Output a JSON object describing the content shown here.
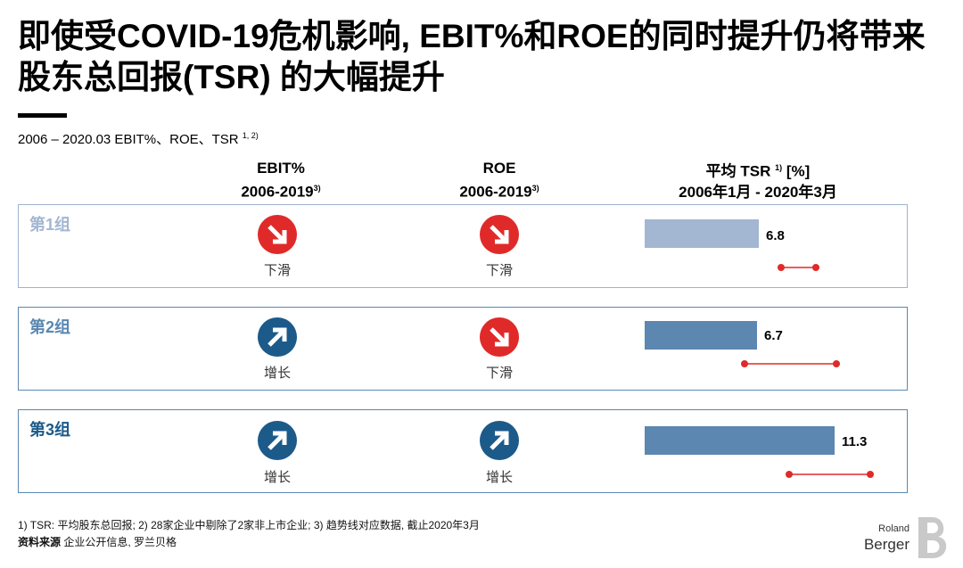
{
  "title": "即使受COVID-19危机影响, EBIT%和ROE的同时提升仍将带来股东总回报(TSR) 的大幅提升",
  "subtitle": "2006 – 2020.03 EBIT%、ROE、TSR",
  "subtitle_sup": "1, 2)",
  "columns": {
    "ebit": {
      "line1": "EBIT%",
      "line2": "2006-2019",
      "sup": "3)"
    },
    "roe": {
      "line1": "ROE",
      "line2": "2006-2019",
      "sup": "3)"
    },
    "tsr": {
      "line1a": "平均 TSR",
      "sup": "1)",
      "line1b": "[%]",
      "line2": "2006年1月 -  2020年3月"
    }
  },
  "groups": [
    {
      "label": "第1组",
      "ebit": {
        "dir": "down",
        "text": "下滑"
      },
      "roe": {
        "dir": "down",
        "text": "下滑"
      },
      "tsr": "6.8"
    },
    {
      "label": "第2组",
      "ebit": {
        "dir": "up",
        "text": "增长"
      },
      "roe": {
        "dir": "down",
        "text": "下滑"
      },
      "tsr": "6.7"
    },
    {
      "label": "第3组",
      "ebit": {
        "dir": "up",
        "text": "增长"
      },
      "roe": {
        "dir": "up",
        "text": "增长"
      },
      "tsr": "11.3"
    }
  ],
  "chart_data": {
    "type": "bar",
    "categories": [
      "第1组",
      "第2组",
      "第3组"
    ],
    "values": [
      6.8,
      6.7,
      11.3
    ],
    "title": "平均 TSR [%]",
    "xlabel": "",
    "ylabel": "",
    "colors": [
      "#a3b6d2",
      "#5b87b0",
      "#5b87b0"
    ]
  },
  "colors": {
    "down": "#e02a2a",
    "up": "#1c5a8a",
    "range": "#e02a2a"
  },
  "footnote": "1) TSR: 平均股东总回报; 2) 28家企业中剔除了2家非上市企业; 3) 趋势线对应数据, 截止2020年3月",
  "source_label": "资料来源",
  "source_text": "企业公开信息, 罗兰贝格",
  "logo": {
    "line1": "Roland",
    "line2": "Berger"
  }
}
